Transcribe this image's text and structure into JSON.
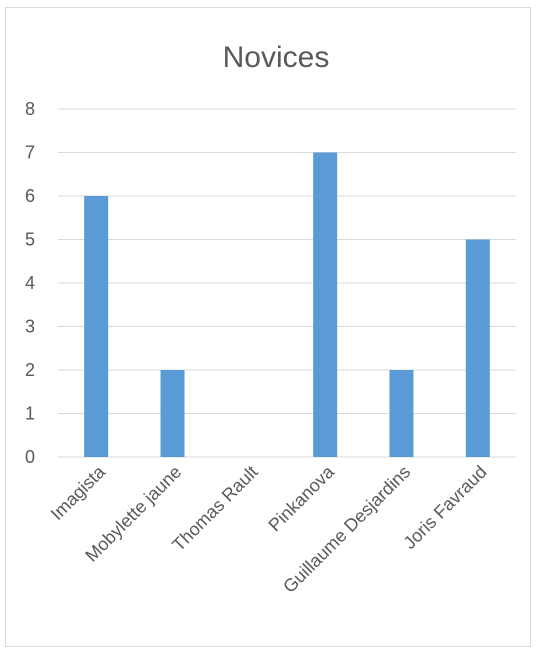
{
  "chart_data": {
    "type": "bar",
    "title": "Novices",
    "categories": [
      "Imagista",
      "Mobylette jaune",
      "Thomas Rault",
      "Pinkanova",
      "Guillaume Desjardins",
      "Joris Favraud"
    ],
    "values": [
      6,
      2,
      0,
      7,
      2,
      5
    ],
    "ylim": [
      0,
      8
    ],
    "yticks": [
      "0",
      "1",
      "2",
      "3",
      "4",
      "5",
      "6",
      "7",
      "8"
    ],
    "grid": true,
    "legend": "none",
    "bar_color": "#5B9BD5"
  }
}
